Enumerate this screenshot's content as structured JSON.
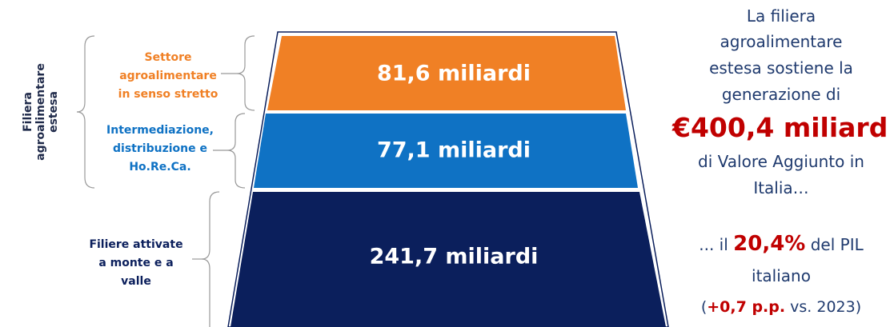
{
  "side_label": [
    "Filiera",
    "agroalimentare",
    "estesa"
  ],
  "layers": [
    {
      "label": [
        "Settore",
        "agroalimentare",
        "in senso stretto"
      ],
      "value": "81,6 miliardi",
      "color": "#f08025"
    },
    {
      "label": [
        "Intermediazione,",
        "distribuzione e",
        "Ho.Re.Ca."
      ],
      "value": "77,1 miliardi",
      "color": "#0f72c4"
    },
    {
      "label": [
        "Filiere attivate",
        "a monte e a",
        "valle"
      ],
      "value": "241,7 miliardi",
      "color": "#0b1f5c"
    }
  ],
  "summary": {
    "intro": [
      "La filiera",
      "agroalimentare",
      "estesa sostiene la",
      "generazione di"
    ],
    "total": "€400,4 miliardi",
    "outro": [
      "di Valore Aggiunto in",
      "Italia…"
    ],
    "share": {
      "before": "... il ",
      "highlight": "20,4%",
      "after": " del PIL"
    },
    "share_end": "italiano",
    "change": {
      "open": "(",
      "highlight": "+0,7 p.p.",
      "after": " vs. 2023)"
    }
  }
}
